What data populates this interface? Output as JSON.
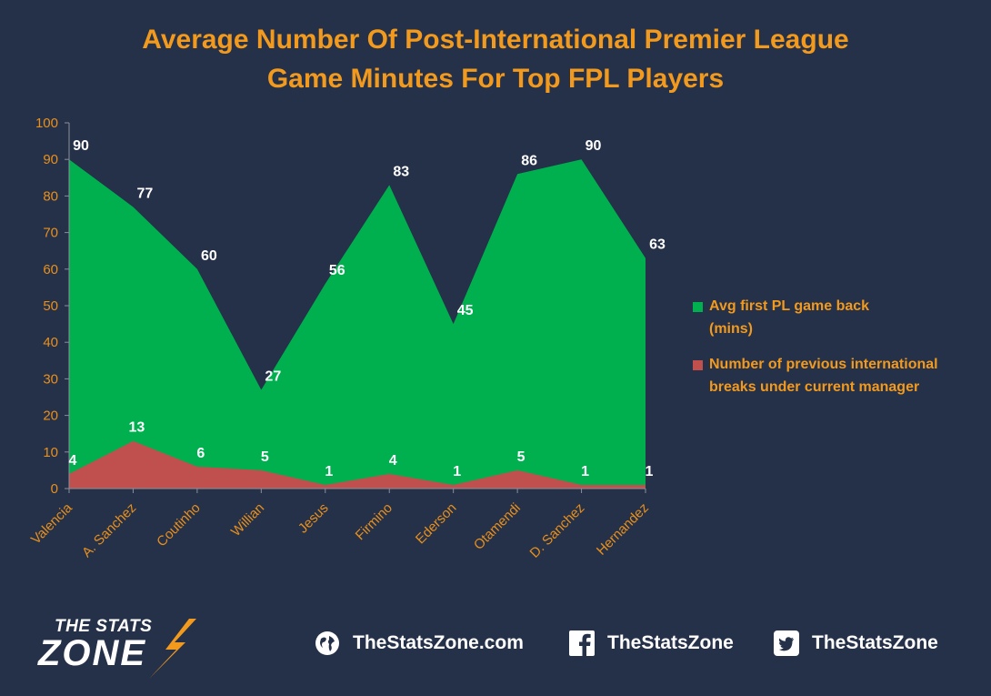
{
  "title": {
    "line1": "Average Number Of Post-International Premier League",
    "line2": "Game Minutes For Top FPL Players"
  },
  "colors": {
    "background": "#253049",
    "accent": "#f29a1d",
    "green": "#00b04f",
    "red": "#c0504d"
  },
  "chart_data": {
    "type": "area",
    "categories": [
      "Valencia",
      "A. Sanchez",
      "Coutinho",
      "Willian",
      "Jesus",
      "Firmino",
      "Ederson",
      "Otamendi",
      "D. Sanchez",
      "Hernandez"
    ],
    "series": [
      {
        "name": "Avg first PL game back (mins)",
        "values": [
          90,
          77,
          60,
          27,
          56,
          83,
          45,
          86,
          90,
          63
        ]
      },
      {
        "name": "Number of previous international breaks under current manager",
        "values": [
          4,
          13,
          6,
          5,
          1,
          4,
          1,
          5,
          1,
          1
        ]
      }
    ],
    "ylim": [
      0,
      100
    ],
    "yticks": [
      0,
      10,
      20,
      30,
      40,
      50,
      60,
      70,
      80,
      90,
      100
    ],
    "grid": false,
    "legend_position": "right"
  },
  "legend": [
    {
      "line1": "Avg first PL game back",
      "line2": "(mins)",
      "color": "#00b04f"
    },
    {
      "line1": "Number of previous international",
      "line2": "breaks under current manager",
      "color": "#c0504d"
    }
  ],
  "footer": {
    "logo_line1": "THE STATS",
    "logo_line2": "ZONE",
    "website": "TheStatsZone.com",
    "facebook": "TheStatsZone",
    "twitter": "TheStatsZone"
  }
}
